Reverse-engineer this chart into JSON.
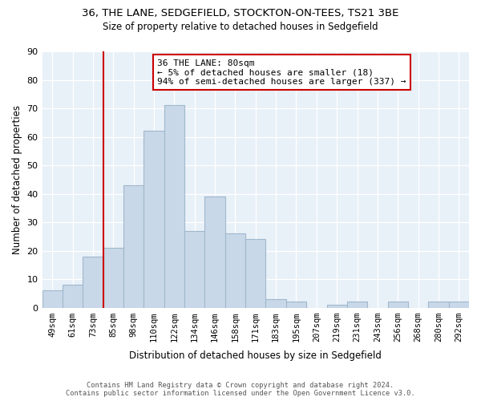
{
  "title1": "36, THE LANE, SEDGEFIELD, STOCKTON-ON-TEES, TS21 3BE",
  "title2": "Size of property relative to detached houses in Sedgefield",
  "xlabel": "Distribution of detached houses by size in Sedgefield",
  "ylabel": "Number of detached properties",
  "categories": [
    "49sqm",
    "61sqm",
    "73sqm",
    "85sqm",
    "98sqm",
    "110sqm",
    "122sqm",
    "134sqm",
    "146sqm",
    "158sqm",
    "171sqm",
    "183sqm",
    "195sqm",
    "207sqm",
    "219sqm",
    "231sqm",
    "243sqm",
    "256sqm",
    "268sqm",
    "280sqm",
    "292sqm"
  ],
  "values": [
    6,
    8,
    18,
    21,
    43,
    62,
    71,
    27,
    39,
    26,
    24,
    3,
    2,
    0,
    1,
    2,
    0,
    2,
    0,
    2,
    2
  ],
  "bar_color": "#c8d8e8",
  "bar_edge_color": "#a0b8cc",
  "vline_color": "#cc0000",
  "annotation_title": "36 THE LANE: 80sqm",
  "annotation_line1": "← 5% of detached houses are smaller (18)",
  "annotation_line2": "94% of semi-detached houses are larger (337) →",
  "annotation_box_color": "#ffffff",
  "annotation_box_edge": "#cc0000",
  "ylim": [
    0,
    90
  ],
  "yticks": [
    0,
    10,
    20,
    30,
    40,
    50,
    60,
    70,
    80,
    90
  ],
  "footnote1": "Contains HM Land Registry data © Crown copyright and database right 2024.",
  "footnote2": "Contains public sector information licensed under the Open Government Licence v3.0.",
  "bg_color": "#e8f0f8"
}
